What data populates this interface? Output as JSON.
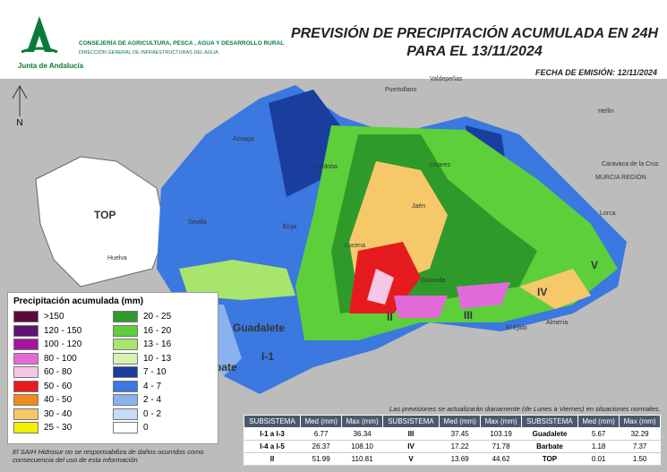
{
  "header": {
    "org": "Junta de Andalucía",
    "department": "CONSEJERÍA DE AGRICULTURA, PESCA , AGUA Y DESARROLLO RURAL",
    "directorate": "DIRECCIÓN GENERAL DE INFRAESTRUCTURAS DEL AGUA",
    "title_line1": "PREVISIÓN DE PRECIPITACIÓN ACUMULADA EN 24H",
    "title_line2": "PARA EL 13/11/2024",
    "issue_date": "FECHA DE EMISIÓN: 12/11/2024"
  },
  "map": {
    "places": [
      "Puertollano",
      "Valdepeñas",
      "Hellín",
      "Córdoba",
      "Jaén",
      "Linares",
      "Granada",
      "Almería",
      "El Ejido",
      "Lorca",
      "Sevilla",
      "Écija",
      "Lucena",
      "Huelva",
      "Azuaga",
      "Caravaca de la Cruz",
      "MURCIA REGIÓN"
    ],
    "zones": [
      "TOP",
      "Barbate",
      "Guadalete",
      "I-1",
      "II",
      "III",
      "IV",
      "V"
    ],
    "north": "N"
  },
  "legend": {
    "title": "Precipitación acumulada (mm)",
    "items": [
      {
        "label": ">150",
        "color": "#5a0a3a"
      },
      {
        "label": "120 - 150",
        "color": "#5c1470"
      },
      {
        "label": "100 - 120",
        "color": "#a4169e"
      },
      {
        "label": "80 - 100",
        "color": "#e26ad8"
      },
      {
        "label": "60 - 80",
        "color": "#f6c6e6"
      },
      {
        "label": "50 - 60",
        "color": "#e51b1e"
      },
      {
        "label": "40 - 50",
        "color": "#f08a1e"
      },
      {
        "label": "30 - 40",
        "color": "#f6c86a"
      },
      {
        "label": "25 - 30",
        "color": "#f3ef00"
      },
      {
        "label": "20 - 25",
        "color": "#2e9a2a"
      },
      {
        "label": "16 - 20",
        "color": "#5ccf3a"
      },
      {
        "label": "13 - 16",
        "color": "#a8e56c"
      },
      {
        "label": "10 - 13",
        "color": "#d6f4b0"
      },
      {
        "label": "7 - 10",
        "color": "#1a3e9e"
      },
      {
        "label": "4 - 7",
        "color": "#3b78df"
      },
      {
        "label": "2 - 4",
        "color": "#8ab2ee"
      },
      {
        "label": "0 - 2",
        "color": "#c8dcf7"
      },
      {
        "label": "0",
        "color": "#ffffff"
      }
    ]
  },
  "note": "Las previsiones se actualizarán diariamente (de Lunes a Viernes) en situaciones normales.",
  "table": {
    "header": [
      "SUBSISTEMA",
      "Med (mm)",
      "Max (mm)"
    ],
    "rows": [
      [
        "I-1 a I-3",
        "6.77",
        "36.34",
        "III",
        "37.45",
        "103.19",
        "Guadalete",
        "5.67",
        "32.29"
      ],
      [
        "I-4 a I-5",
        "26.37",
        "108.10",
        "IV",
        "17.22",
        "71.78",
        "Barbate",
        "1.18",
        "7.37"
      ],
      [
        "II",
        "51.99",
        "110.81",
        "V",
        "13.69",
        "44.62",
        "TOP",
        "0.01",
        "1.50"
      ]
    ]
  },
  "disclaimer": "El SAIH Hidrosur no se responsabiliza de daños ocurridos como consecuencia del uso de esta información"
}
